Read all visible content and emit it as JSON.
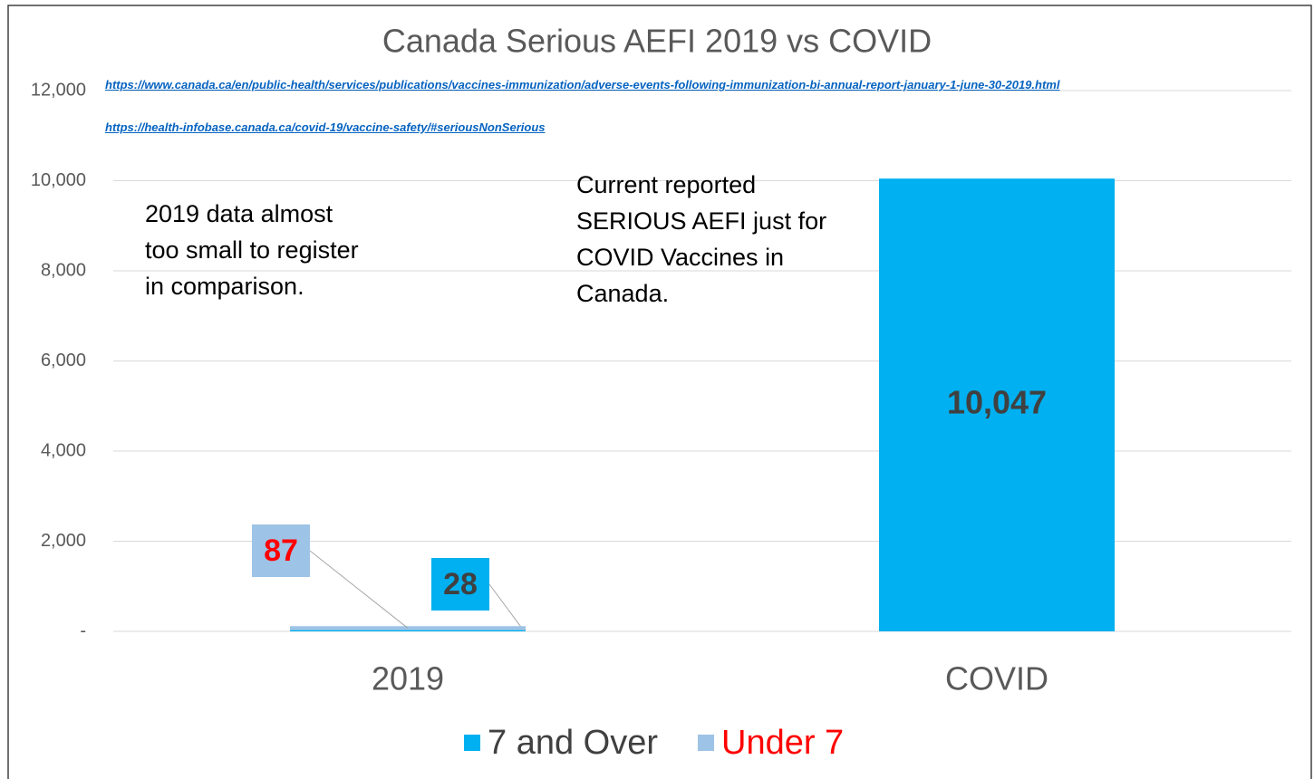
{
  "chart_data": {
    "type": "bar",
    "stacked": true,
    "title": "Canada Serious AEFI  2019 vs COVID",
    "categories": [
      "2019",
      "COVID"
    ],
    "series": [
      {
        "name": "7 and Over",
        "color": "#00b0f0",
        "label_color": "#404040",
        "values": [
          28,
          10047
        ],
        "value_labels": [
          "28",
          "10,047"
        ]
      },
      {
        "name": "Under 7",
        "color": "#9dc3e6",
        "label_color": "#ff0000",
        "values": [
          87,
          null
        ]
      }
    ],
    "ylim": [
      0,
      12000
    ],
    "yticks": [
      {
        "value": 0,
        "label": "-"
      },
      {
        "value": 2000,
        "label": "2,000"
      },
      {
        "value": 4000,
        "label": "4,000"
      },
      {
        "value": 6000,
        "label": "6,000"
      },
      {
        "value": 8000,
        "label": "8,000"
      },
      {
        "value": 10000,
        "label": "10,000"
      },
      {
        "value": 12000,
        "label": "12,000"
      }
    ],
    "grid": true,
    "legend": "bottom",
    "annotations": [
      "https://www.canada.ca/en/public-health/services/publications/vaccines-immunization/adverse-events-following-immunization-bi-annual-report-january-1-june-30-2019.html",
      "https://health-infobase.canada.ca/covid-19/vaccine-safety/#seriousNonSerious",
      "2019 data almost\ntoo small to register\nin comparison.",
      "Current reported\nSERIOUS AEFI just for\nCOVID Vaccines in\nCanada."
    ]
  }
}
